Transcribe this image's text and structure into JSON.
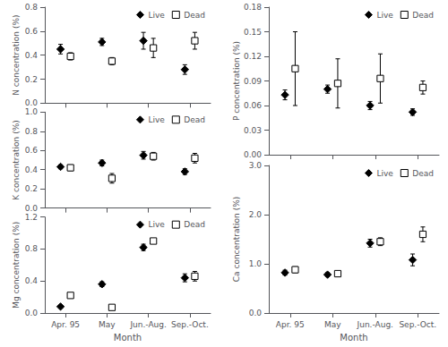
{
  "chart_data": [
    {
      "type": "scatter",
      "ylabel": "N concentration (%)",
      "categories": [
        "Apr. 95",
        "May",
        "Jun.-Aug.",
        "Sep.-Oct."
      ],
      "series": [
        {
          "name": "Live",
          "color": "black",
          "marker": "diamond",
          "values": [
            0.45,
            0.51,
            0.52,
            0.28
          ],
          "errors": [
            0.04,
            0.03,
            0.07,
            0.04
          ]
        },
        {
          "name": "Dead",
          "color": "white",
          "marker": "square",
          "values": [
            0.39,
            0.35,
            0.46,
            0.52
          ],
          "errors": [
            0.03,
            0.03,
            0.08,
            0.07
          ]
        }
      ],
      "ylim": [
        0.0,
        0.8
      ],
      "yticks": [
        {
          "value": 0.0,
          "label": "0.0"
        },
        0.2,
        0.4,
        0.6,
        0.8
      ],
      "grid": false,
      "legend": "upper right",
      "tick_labels": "y"
    },
    {
      "type": "scatter",
      "ylabel": "K concentration (%)",
      "categories": [
        "Apr. 95",
        "May",
        "Jun.-Aug.",
        "Sep.-Oct."
      ],
      "series": [
        {
          "name": "Live",
          "color": "black",
          "marker": "diamond",
          "values": [
            0.43,
            0.47,
            0.55,
            0.38
          ],
          "errors": [
            0.02,
            0.03,
            0.04,
            0.03
          ]
        },
        {
          "name": "Dead",
          "color": "white",
          "marker": "square",
          "values": [
            0.42,
            0.31,
            0.54,
            0.52
          ],
          "errors": [
            0.03,
            0.05,
            0.04,
            0.05
          ]
        }
      ],
      "ylim": [
        0.0,
        1.0
      ],
      "yticks": [
        {
          "value": 0.0,
          "label": "0.0"
        },
        0.2,
        0.4,
        0.6,
        0.8,
        {
          "value": 1.0,
          "label": "1.0"
        }
      ],
      "grid": false,
      "legend": "upper right",
      "tick_labels": "y"
    },
    {
      "type": "scatter",
      "ylabel": "Mg concentration (%)",
      "xlabel": "Month",
      "categories": [
        "Apr. 95",
        "May",
        "Jun.-Aug.",
        "Sep.-Oct."
      ],
      "series": [
        {
          "name": "Live",
          "color": "black",
          "marker": "diamond",
          "values": [
            0.08,
            0.36,
            0.82,
            0.44
          ],
          "errors": [
            0.01,
            0.03,
            0.04,
            0.05
          ]
        },
        {
          "name": "Dead",
          "color": "white",
          "marker": "square",
          "values": [
            0.22,
            0.07,
            0.9,
            0.46
          ],
          "errors": [
            0.03,
            0.01,
            0.03,
            0.06
          ]
        }
      ],
      "ylim": [
        0.0,
        1.2
      ],
      "yticks": [
        {
          "value": 0.0,
          "label": "0.0"
        },
        0.4,
        0.8,
        1.2
      ],
      "grid": false,
      "legend": "upper right"
    },
    {
      "type": "scatter",
      "ylabel": "P concentration (%)",
      "categories": [
        "Apr. 95",
        "May",
        "Jun.-Aug.",
        "Sep.-Oct."
      ],
      "series": [
        {
          "name": "Live",
          "color": "black",
          "marker": "diamond",
          "values": [
            0.073,
            0.08,
            0.06,
            0.052
          ],
          "errors": [
            0.006,
            0.005,
            0.005,
            0.004
          ]
        },
        {
          "name": "Dead",
          "color": "white",
          "marker": "square",
          "values": [
            0.105,
            0.087,
            0.093,
            0.082
          ],
          "errors": [
            0.045,
            0.03,
            0.03,
            0.008
          ]
        }
      ],
      "ylim": [
        0.0,
        0.18
      ],
      "yticks": [
        {
          "value": 0.0,
          "label": "0.00"
        },
        0.03,
        0.06,
        0.09,
        0.12,
        0.15,
        0.18
      ],
      "grid": false,
      "legend": "upper right",
      "tick_labels": "y"
    },
    {
      "type": "scatter",
      "ylabel": "Ca concentration (%)",
      "xlabel": "Month",
      "categories": [
        "Apr. 95",
        "May",
        "Jun.-Aug.",
        "Sep.-Oct."
      ],
      "series": [
        {
          "name": "Live",
          "color": "black",
          "marker": "diamond",
          "values": [
            0.82,
            0.78,
            1.42,
            1.08
          ],
          "errors": [
            0.05,
            0.04,
            0.08,
            0.12
          ]
        },
        {
          "name": "Dead",
          "color": "white",
          "marker": "square",
          "values": [
            0.88,
            0.8,
            1.45,
            1.6
          ],
          "errors": [
            0.06,
            0.05,
            0.08,
            0.15
          ]
        }
      ],
      "ylim": [
        0.0,
        3.0
      ],
      "yticks": [
        {
          "value": 0.0,
          "label": "0.0"
        },
        {
          "value": 1.0,
          "label": "1.0"
        },
        {
          "value": 2.0,
          "label": "2.0"
        },
        {
          "value": 3.0,
          "label": "3.0"
        }
      ],
      "grid": false,
      "legend": "upper right"
    }
  ]
}
